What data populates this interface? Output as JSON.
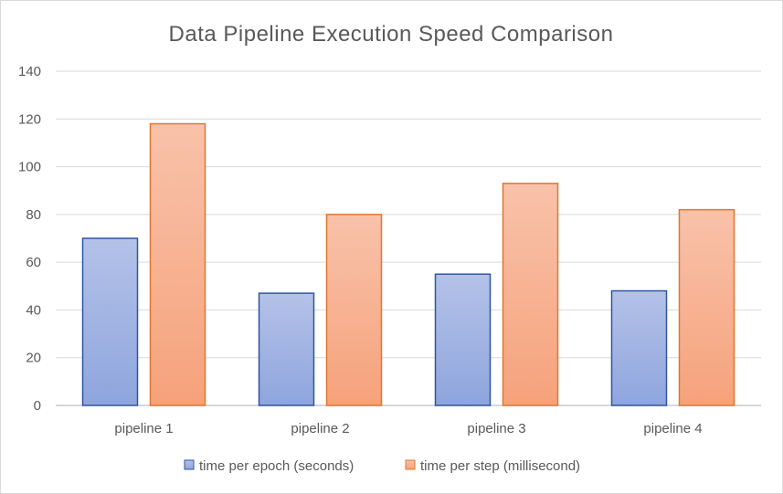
{
  "chart_data": {
    "type": "bar",
    "title": "Data Pipeline Execution Speed Comparison",
    "xlabel": "",
    "ylabel": "",
    "categories": [
      "pipeline 1",
      "pipeline 2",
      "pipeline 3",
      "pipeline 4"
    ],
    "series": [
      {
        "name": "time per epoch (seconds)",
        "values": [
          70,
          47,
          55,
          48
        ],
        "color": "#8faadc",
        "stroke": "#2f55a4"
      },
      {
        "name": "time per step (millisecond)",
        "values": [
          118,
          80,
          93,
          82
        ],
        "color": "#f8b08e",
        "stroke": "#e1762e"
      }
    ],
    "ylim": [
      0,
      140
    ],
    "yticks": [
      0,
      20,
      40,
      60,
      80,
      100,
      120,
      140
    ],
    "grid": true,
    "legend": "bottom-center"
  }
}
